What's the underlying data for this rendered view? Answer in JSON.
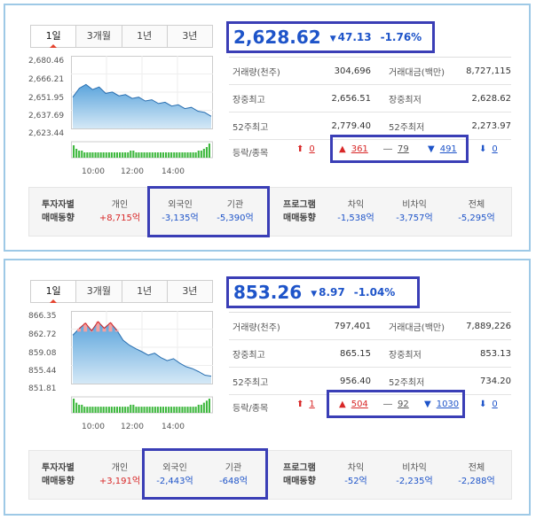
{
  "panels": [
    {
      "tabs": [
        "1일",
        "3개월",
        "1년",
        "3년"
      ],
      "chart_data": {
        "type": "area",
        "y_ticks": [
          "2,680.46",
          "2,666.21",
          "2,651.95",
          "2,637.69",
          "2,623.44"
        ],
        "ylim": [
          2623.44,
          2680.46
        ],
        "x_ticks": [
          "10:00",
          "12:00",
          "14:00"
        ],
        "series": [
          {
            "values": [
              2648,
              2655,
              2658,
              2654,
              2656,
              2651,
              2652,
              2649,
              2650,
              2647,
              2648,
              2645,
              2646,
              2643,
              2644,
              2641,
              2642,
              2639,
              2640,
              2637,
              2636,
              2633
            ]
          }
        ],
        "volume": [
          7,
          5,
          4,
          4,
          3,
          3,
          3,
          3,
          3,
          3,
          3,
          3,
          3,
          3,
          3,
          3,
          3,
          3,
          3,
          3,
          3,
          4,
          4,
          3,
          3,
          3,
          3,
          3,
          3,
          3,
          3,
          3,
          3,
          3,
          3,
          3,
          3,
          3,
          3,
          3,
          3,
          3,
          3,
          3,
          3,
          3,
          4,
          4,
          5,
          6,
          8
        ]
      },
      "price": "2,628.62",
      "change": "47.13",
      "rate": "-1.76%",
      "stats": [
        {
          "k1": "거래량(천주)",
          "v1": "304,696",
          "k2": "거래대금(백만)",
          "v2": "8,727,115"
        },
        {
          "k1": "장중최고",
          "v1": "2,656.51",
          "k2": "장중최저",
          "v2": "2,628.62"
        },
        {
          "k1": "52주최고",
          "v1": "2,779.40",
          "k2": "52주최저",
          "v2": "2,273.97"
        }
      ],
      "updown_label": "등락/종목",
      "upper": "0",
      "up": "361",
      "flat": "79",
      "down": "491",
      "lower": "0",
      "investor": {
        "title1": "투자자별",
        "title2": "매매동향",
        "individual_label": "개인",
        "individual": "+8,715억",
        "foreign_label": "외국인",
        "foreign": "-3,135억",
        "institution_label": "기관",
        "institution": "-5,390억",
        "program1": "프로그램",
        "program2": "매매동향",
        "arb_label": "차익",
        "arb": "-1,538억",
        "nonarb_label": "비차익",
        "nonarb": "-3,757억",
        "total_label": "전체",
        "total": "-5,295억"
      }
    },
    {
      "tabs": [
        "1일",
        "3개월",
        "1년",
        "3년"
      ],
      "chart_data": {
        "type": "area",
        "y_ticks": [
          "866.35",
          "862.72",
          "859.08",
          "855.44",
          "851.81"
        ],
        "ylim": [
          851.81,
          866.35
        ],
        "x_ticks": [
          "10:00",
          "12:00",
          "14:00"
        ],
        "series": [
          {
            "values": [
              861.5,
              862.8,
              863.9,
              862.4,
              864.2,
              862.9,
              864.0,
              862.5,
              860.5,
              859.5,
              858.8,
              858.2,
              857.5,
              857.9,
              857.0,
              856.4,
              856.8,
              855.9,
              855.2,
              854.8,
              854.2,
              853.5,
              853.3
            ]
          }
        ],
        "reference": 862.2,
        "volume": [
          7,
          5,
          4,
          4,
          3,
          3,
          3,
          3,
          3,
          3,
          3,
          3,
          3,
          3,
          3,
          3,
          3,
          3,
          3,
          3,
          3,
          4,
          4,
          3,
          3,
          3,
          3,
          3,
          3,
          3,
          3,
          3,
          3,
          3,
          3,
          3,
          3,
          3,
          3,
          3,
          3,
          3,
          3,
          3,
          3,
          3,
          4,
          4,
          5,
          6,
          7
        ]
      },
      "price": "853.26",
      "change": "8.97",
      "rate": "-1.04%",
      "stats": [
        {
          "k1": "거래량(천주)",
          "v1": "797,401",
          "k2": "거래대금(백만)",
          "v2": "7,889,226"
        },
        {
          "k1": "장중최고",
          "v1": "865.15",
          "k2": "장중최저",
          "v2": "853.13"
        },
        {
          "k1": "52주최고",
          "v1": "956.40",
          "k2": "52주최저",
          "v2": "734.20"
        }
      ],
      "updown_label": "등락/종목",
      "upper": "1",
      "up": "504",
      "flat": "92",
      "down": "1030",
      "lower": "0",
      "investor": {
        "title1": "투자자별",
        "title2": "매매동향",
        "individual_label": "개인",
        "individual": "+3,191억",
        "foreign_label": "외국인",
        "foreign": "-2,443억",
        "institution_label": "기관",
        "institution": "-648억",
        "program1": "프로그램",
        "program2": "매매동향",
        "arb_label": "차익",
        "arb": "-52억",
        "nonarb_label": "비차익",
        "nonarb": "-2,235억",
        "total_label": "전체",
        "total": "-2,288억"
      }
    }
  ]
}
